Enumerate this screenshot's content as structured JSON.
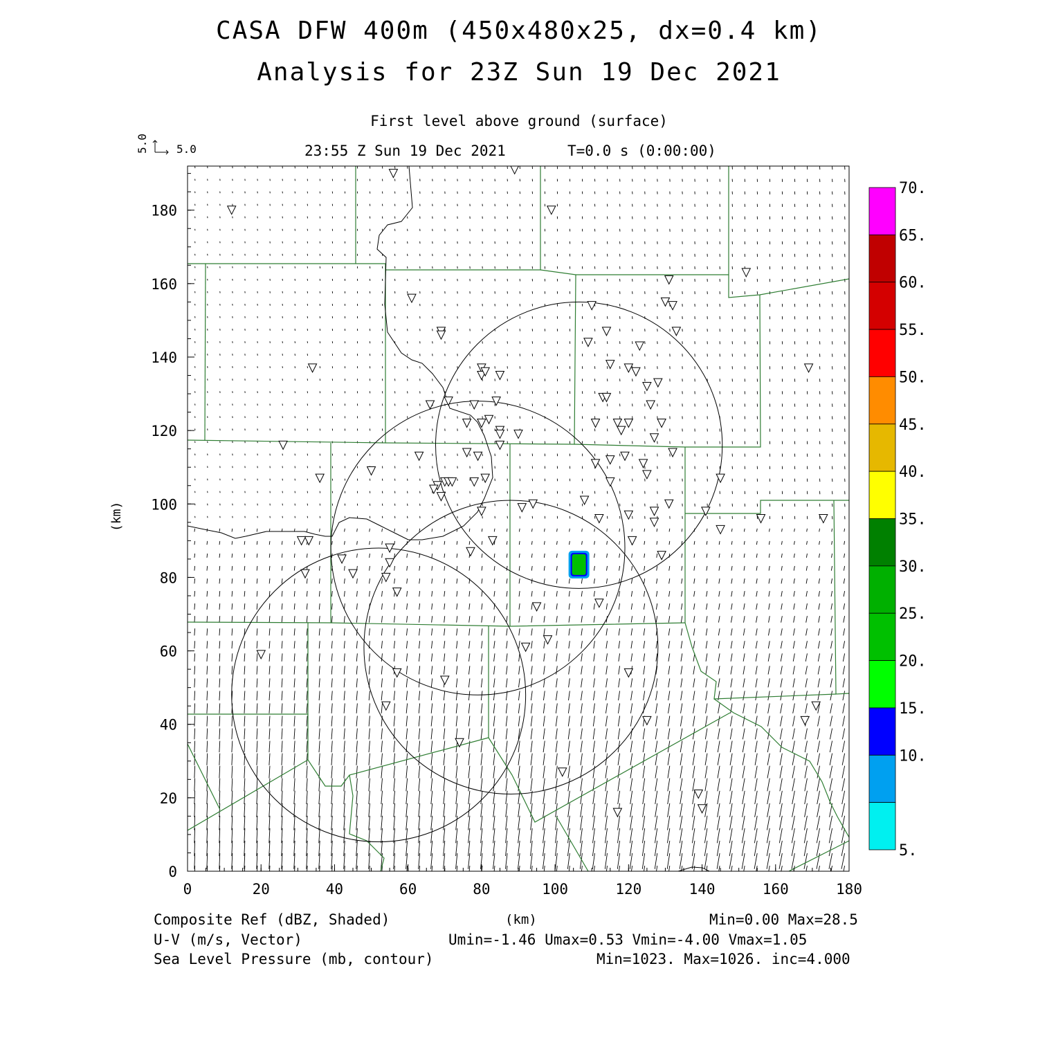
{
  "title": {
    "line1": "CASA DFW 400m (450x480x25, dx=0.4 km)",
    "line2": "Analysis for 23Z Sun 19 Dec 2021"
  },
  "subtitle": "First level above ground (surface)",
  "valid_time": "23:55 Z Sun 19 Dec 2021",
  "forecast_time": "T=0.0 s (0:00:00)",
  "vector_reference": {
    "u_label": "5.0",
    "v_label": "5.0"
  },
  "axes": {
    "xlabel": "(km)",
    "ylabel": "(km)",
    "x_ticks": [
      "0",
      "20",
      "40",
      "60",
      "80",
      "100",
      "120",
      "140",
      "160",
      "180"
    ],
    "y_ticks": [
      "0",
      "20",
      "40",
      "60",
      "80",
      "100",
      "120",
      "140",
      "160",
      "180"
    ]
  },
  "colorbar": {
    "labels": [
      "70.",
      "65.",
      "60.",
      "55.",
      "50.",
      "45.",
      "40.",
      "35.",
      "30.",
      "25.",
      "20.",
      "15.",
      "10.",
      "5."
    ],
    "colors": [
      "#ff00ff",
      "#c00000",
      "#d40000",
      "#ff0000",
      "#ff8c00",
      "#e6b800",
      "#ffff00",
      "#008000",
      "#00b000",
      "#00c000",
      "#00ff00",
      "#0000ff",
      "#00a0f0",
      "#00f0f0"
    ]
  },
  "footer": {
    "field1": "Composite Ref (dBZ, Shaded)",
    "field2": "U-V (m/s, Vector)",
    "field3": "Sea Level Pressure (mb, contour)",
    "stats1": "Min=0.00 Max=28.5",
    "stats2": "Umin=-1.46 Umax=0.53 Vmin=-4.00 Vmax=1.05",
    "stats3": "Min=1023. Max=1026. inc=4.000"
  },
  "map_data": {
    "radar_rings_km": [
      {
        "cx": 106.5,
        "cy": 116,
        "r": 39
      },
      {
        "cx": 79,
        "cy": 88,
        "r": 40
      },
      {
        "cx": 88,
        "cy": 61,
        "r": 40
      },
      {
        "cx": 52,
        "cy": 48,
        "r": 40
      }
    ],
    "reflectivity_cell_km": {
      "x": 106.5,
      "y": 83.5,
      "max_dbz": 28.5
    },
    "stations_km": [
      [
        56,
        190
      ],
      [
        89,
        191
      ],
      [
        12,
        180
      ],
      [
        99,
        180
      ],
      [
        152,
        163
      ],
      [
        61,
        156
      ],
      [
        110,
        154
      ],
      [
        130,
        155
      ],
      [
        132,
        154
      ],
      [
        131,
        161
      ],
      [
        69,
        147
      ],
      [
        69,
        146
      ],
      [
        133,
        147
      ],
      [
        109,
        144
      ],
      [
        114,
        147
      ],
      [
        123,
        143
      ],
      [
        80,
        137
      ],
      [
        80,
        135
      ],
      [
        81,
        136
      ],
      [
        85,
        135
      ],
      [
        115,
        138
      ],
      [
        120,
        137
      ],
      [
        122,
        136
      ],
      [
        169,
        137
      ],
      [
        34,
        137
      ],
      [
        125,
        132
      ],
      [
        128,
        133
      ],
      [
        113,
        129
      ],
      [
        114,
        129
      ],
      [
        126,
        127
      ],
      [
        66,
        127
      ],
      [
        71,
        128
      ],
      [
        78,
        127
      ],
      [
        84,
        128
      ],
      [
        76,
        122
      ],
      [
        80,
        122
      ],
      [
        82,
        123
      ],
      [
        111,
        122
      ],
      [
        117,
        122
      ],
      [
        120,
        122
      ],
      [
        118,
        120
      ],
      [
        129,
        122
      ],
      [
        85,
        120
      ],
      [
        85,
        119
      ],
      [
        90,
        119
      ],
      [
        127,
        118
      ],
      [
        26,
        116
      ],
      [
        85,
        116
      ],
      [
        63,
        113
      ],
      [
        76,
        114
      ],
      [
        79,
        113
      ],
      [
        111,
        111
      ],
      [
        115,
        112
      ],
      [
        119,
        113
      ],
      [
        124,
        111
      ],
      [
        125,
        108
      ],
      [
        132,
        114
      ],
      [
        50,
        109
      ],
      [
        36,
        107
      ],
      [
        68,
        105
      ],
      [
        70,
        106
      ],
      [
        71,
        106
      ],
      [
        72,
        106
      ],
      [
        78,
        106
      ],
      [
        81,
        107
      ],
      [
        115,
        106
      ],
      [
        145,
        107
      ],
      [
        67,
        104
      ],
      [
        69,
        102
      ],
      [
        108,
        101
      ],
      [
        94,
        100
      ],
      [
        91,
        99
      ],
      [
        80,
        98
      ],
      [
        127,
        98
      ],
      [
        120,
        97
      ],
      [
        131,
        100
      ],
      [
        141,
        98
      ],
      [
        112,
        96
      ],
      [
        127,
        95
      ],
      [
        156,
        96
      ],
      [
        173,
        96
      ],
      [
        145,
        93
      ],
      [
        33,
        90
      ],
      [
        31,
        90
      ],
      [
        83,
        90
      ],
      [
        121,
        90
      ],
      [
        55,
        88
      ],
      [
        42,
        85
      ],
      [
        77,
        87
      ],
      [
        129,
        86
      ],
      [
        55,
        84
      ],
      [
        45,
        81
      ],
      [
        32,
        81
      ],
      [
        54,
        80
      ],
      [
        57,
        76
      ],
      [
        95,
        72
      ],
      [
        112,
        73
      ],
      [
        98,
        63
      ],
      [
        92,
        61
      ],
      [
        20,
        59
      ],
      [
        57,
        54
      ],
      [
        120,
        54
      ],
      [
        70,
        52
      ],
      [
        54,
        45
      ],
      [
        171,
        45
      ],
      [
        168,
        41
      ],
      [
        125,
        41
      ],
      [
        74,
        35
      ],
      [
        102,
        27
      ],
      [
        139,
        21
      ],
      [
        140,
        17
      ],
      [
        117,
        16
      ]
    ]
  }
}
